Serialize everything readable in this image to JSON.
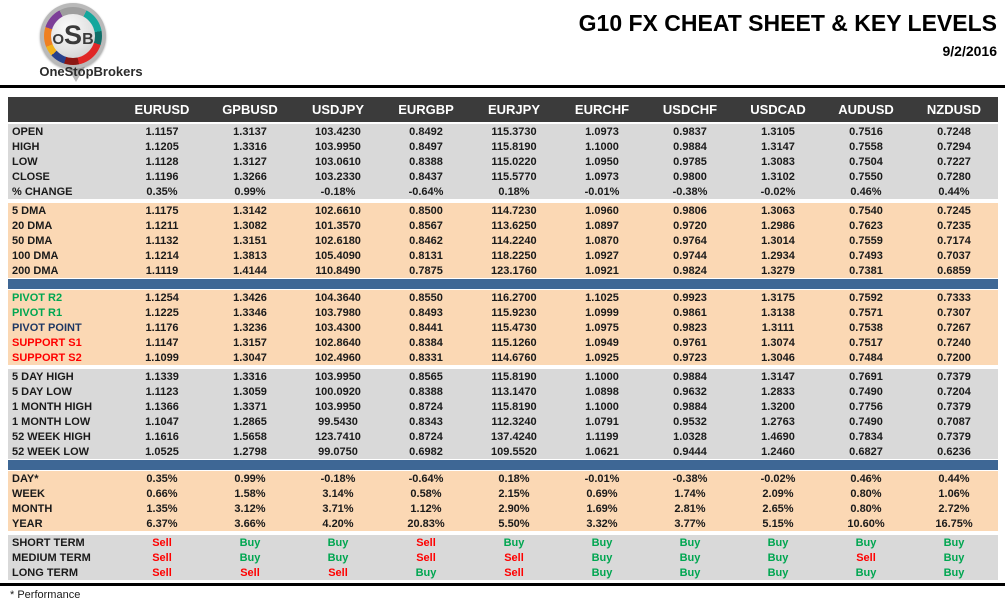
{
  "header": {
    "logo_o": "O",
    "logo_s": "S",
    "logo_b": "B",
    "brand": "OneStopBrokers",
    "title": "G10 FX CHEAT SHEET & KEY LEVELS",
    "date": "9/2/2016"
  },
  "colors": {
    "header_bg": "#3B3B3B",
    "gray_bg": "#D9D9D9",
    "peach_bg": "#FBD8B4",
    "divider_blue": "#3E6795",
    "green": "#00A651",
    "red": "#FF0000",
    "navy": "#1F3864",
    "text": "#1A1A1A"
  },
  "table": {
    "columns": [
      "EURUSD",
      "GPBUSD",
      "USDJPY",
      "EURGBP",
      "EURJPY",
      "EURCHF",
      "USDCHF",
      "USDCAD",
      "AUDUSD",
      "NZDUSD"
    ],
    "sections": [
      {
        "id": "ohlc",
        "bg": "gray",
        "divider_after": false,
        "rows": [
          {
            "label": "OPEN",
            "values": [
              "1.1157",
              "1.3137",
              "103.4230",
              "0.8492",
              "115.3730",
              "1.0973",
              "0.9837",
              "1.3105",
              "0.7516",
              "0.7248"
            ]
          },
          {
            "label": "HIGH",
            "values": [
              "1.1205",
              "1.3316",
              "103.9950",
              "0.8497",
              "115.8190",
              "1.1000",
              "0.9884",
              "1.3147",
              "0.7558",
              "0.7294"
            ]
          },
          {
            "label": "LOW",
            "values": [
              "1.1128",
              "1.3127",
              "103.0610",
              "0.8388",
              "115.0220",
              "1.0950",
              "0.9785",
              "1.3083",
              "0.7504",
              "0.7227"
            ]
          },
          {
            "label": "CLOSE",
            "values": [
              "1.1196",
              "1.3266",
              "103.2330",
              "0.8437",
              "115.5770",
              "1.0973",
              "0.9800",
              "1.3102",
              "0.7550",
              "0.7280"
            ]
          },
          {
            "label": "% CHANGE",
            "values": [
              "0.35%",
              "0.99%",
              "-0.18%",
              "-0.64%",
              "0.18%",
              "-0.01%",
              "-0.38%",
              "-0.02%",
              "0.46%",
              "0.44%"
            ]
          }
        ]
      },
      {
        "id": "dma",
        "bg": "peach",
        "divider_after": true,
        "rows": [
          {
            "label": "5 DMA",
            "values": [
              "1.1175",
              "1.3142",
              "102.6610",
              "0.8500",
              "114.7230",
              "1.0960",
              "0.9806",
              "1.3063",
              "0.7540",
              "0.7245"
            ]
          },
          {
            "label": "20 DMA",
            "values": [
              "1.1211",
              "1.3082",
              "101.3570",
              "0.8567",
              "113.6250",
              "1.0897",
              "0.9720",
              "1.2986",
              "0.7623",
              "0.7235"
            ]
          },
          {
            "label": "50 DMA",
            "values": [
              "1.1132",
              "1.3151",
              "102.6180",
              "0.8462",
              "114.2240",
              "1.0870",
              "0.9764",
              "1.3014",
              "0.7559",
              "0.7174"
            ]
          },
          {
            "label": "100 DMA",
            "values": [
              "1.1214",
              "1.3813",
              "105.4090",
              "0.8131",
              "118.2250",
              "1.0927",
              "0.9744",
              "1.2934",
              "0.7493",
              "0.7037"
            ]
          },
          {
            "label": "200 DMA",
            "values": [
              "1.1119",
              "1.4144",
              "110.8490",
              "0.7875",
              "123.1760",
              "1.0921",
              "0.9824",
              "1.3279",
              "0.7381",
              "0.6859"
            ]
          }
        ]
      },
      {
        "id": "pivots",
        "bg": "peach",
        "divider_after": false,
        "rows": [
          {
            "label": "PIVOT R2",
            "label_color": "green",
            "values": [
              "1.1254",
              "1.3426",
              "104.3640",
              "0.8550",
              "116.2700",
              "1.1025",
              "0.9923",
              "1.3175",
              "0.7592",
              "0.7333"
            ]
          },
          {
            "label": "PIVOT R1",
            "label_color": "green",
            "values": [
              "1.1225",
              "1.3346",
              "103.7980",
              "0.8493",
              "115.9230",
              "1.0999",
              "0.9861",
              "1.3138",
              "0.7571",
              "0.7307"
            ]
          },
          {
            "label": "PIVOT POINT",
            "label_color": "navy",
            "values": [
              "1.1176",
              "1.3236",
              "103.4300",
              "0.8441",
              "115.4730",
              "1.0975",
              "0.9823",
              "1.3111",
              "0.7538",
              "0.7267"
            ]
          },
          {
            "label": "SUPPORT S1",
            "label_color": "red",
            "values": [
              "1.1147",
              "1.3157",
              "102.8640",
              "0.8384",
              "115.1260",
              "1.0949",
              "0.9761",
              "1.3074",
              "0.7517",
              "0.7240"
            ]
          },
          {
            "label": "SUPPORT S2",
            "label_color": "red",
            "values": [
              "1.1099",
              "1.3047",
              "102.4960",
              "0.8331",
              "114.6760",
              "1.0925",
              "0.9723",
              "1.3046",
              "0.7484",
              "0.7200"
            ]
          }
        ]
      },
      {
        "id": "ranges",
        "bg": "gray",
        "divider_after": true,
        "rows": [
          {
            "label": "5 DAY HIGH",
            "values": [
              "1.1339",
              "1.3316",
              "103.9950",
              "0.8565",
              "115.8190",
              "1.1000",
              "0.9884",
              "1.3147",
              "0.7691",
              "0.7379"
            ]
          },
          {
            "label": "5 DAY LOW",
            "values": [
              "1.1123",
              "1.3059",
              "100.0920",
              "0.8388",
              "113.1470",
              "1.0898",
              "0.9632",
              "1.2833",
              "0.7490",
              "0.7204"
            ]
          },
          {
            "label": "1 MONTH HIGH",
            "values": [
              "1.1366",
              "1.3371",
              "103.9950",
              "0.8724",
              "115.8190",
              "1.1000",
              "0.9884",
              "1.3200",
              "0.7756",
              "0.7379"
            ]
          },
          {
            "label": "1 MONTH LOW",
            "values": [
              "1.1047",
              "1.2865",
              "99.5430",
              "0.8343",
              "112.3240",
              "1.0791",
              "0.9532",
              "1.2763",
              "0.7490",
              "0.7087"
            ]
          },
          {
            "label": "52 WEEK HIGH",
            "values": [
              "1.1616",
              "1.5658",
              "123.7410",
              "0.8724",
              "137.4240",
              "1.1199",
              "1.0328",
              "1.4690",
              "0.7834",
              "0.7379"
            ]
          },
          {
            "label": "52 WEEK LOW",
            "values": [
              "1.0525",
              "1.2798",
              "99.0750",
              "0.6982",
              "109.5520",
              "1.0621",
              "0.9444",
              "1.2460",
              "0.6827",
              "0.6236"
            ]
          }
        ]
      },
      {
        "id": "performance",
        "bg": "peach",
        "divider_after": false,
        "rows": [
          {
            "label": "DAY*",
            "values": [
              "0.35%",
              "0.99%",
              "-0.18%",
              "-0.64%",
              "0.18%",
              "-0.01%",
              "-0.38%",
              "-0.02%",
              "0.46%",
              "0.44%"
            ]
          },
          {
            "label": "WEEK",
            "values": [
              "0.66%",
              "1.58%",
              "3.14%",
              "0.58%",
              "2.15%",
              "0.69%",
              "1.74%",
              "2.09%",
              "0.80%",
              "1.06%"
            ]
          },
          {
            "label": "MONTH",
            "values": [
              "1.35%",
              "3.12%",
              "3.71%",
              "1.12%",
              "2.90%",
              "1.69%",
              "2.81%",
              "2.65%",
              "0.80%",
              "2.72%"
            ]
          },
          {
            "label": "YEAR",
            "values": [
              "6.37%",
              "3.66%",
              "4.20%",
              "20.83%",
              "5.50%",
              "3.32%",
              "3.77%",
              "5.15%",
              "10.60%",
              "16.75%"
            ]
          }
        ]
      },
      {
        "id": "signals",
        "bg": "gray",
        "type": "signals",
        "divider_after": false,
        "rows": [
          {
            "label": "SHORT TERM",
            "values": [
              "Sell",
              "Buy",
              "Buy",
              "Sell",
              "Buy",
              "Buy",
              "Buy",
              "Buy",
              "Buy",
              "Buy"
            ]
          },
          {
            "label": "MEDIUM TERM",
            "values": [
              "Sell",
              "Buy",
              "Buy",
              "Sell",
              "Sell",
              "Buy",
              "Buy",
              "Buy",
              "Sell",
              "Buy"
            ]
          },
          {
            "label": "LONG TERM",
            "values": [
              "Sell",
              "Sell",
              "Sell",
              "Buy",
              "Sell",
              "Buy",
              "Buy",
              "Buy",
              "Buy",
              "Buy"
            ]
          }
        ]
      }
    ]
  },
  "footer": {
    "note": "* Performance"
  }
}
